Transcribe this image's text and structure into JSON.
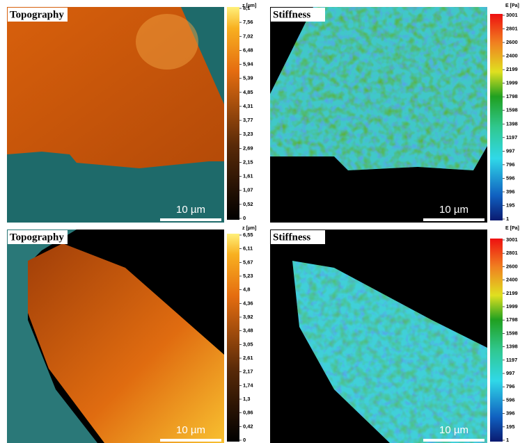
{
  "panels": [
    {
      "title": "Topography",
      "unit": "z [µm]",
      "scale_label": "10 µm",
      "ticks": [
        "8,1",
        "7,56",
        "7,02",
        "6,48",
        "5,94",
        "5,39",
        "4,85",
        "4,31",
        "3,77",
        "3,23",
        "2,69",
        "2,15",
        "1,61",
        "1,07",
        "0,52",
        "0"
      ]
    },
    {
      "title": "Stiffness",
      "unit": "E [Pa]",
      "scale_label": "10 µm",
      "ticks": [
        "3001",
        "2801",
        "2600",
        "2400",
        "2199",
        "1999",
        "1798",
        "1598",
        "1398",
        "1197",
        "997",
        "796",
        "596",
        "396",
        "195",
        "1"
      ]
    },
    {
      "title": "Topography",
      "unit": "z [µm]",
      "scale_label": "10 µm",
      "ticks": [
        "6,55",
        "6,11",
        "5,67",
        "5,23",
        "4,8",
        "4,36",
        "3,92",
        "3,48",
        "3,05",
        "2,61",
        "2,17",
        "1,74",
        "1,3",
        "0,86",
        "0,42",
        "0"
      ]
    },
    {
      "title": "Stiffness",
      "unit": "E [Pa]",
      "scale_label": "10 µm",
      "ticks": [
        "3001",
        "2801",
        "2600",
        "2400",
        "2199",
        "1999",
        "1798",
        "1598",
        "1398",
        "1197",
        "997",
        "796",
        "596",
        "396",
        "195",
        "1"
      ]
    }
  ]
}
